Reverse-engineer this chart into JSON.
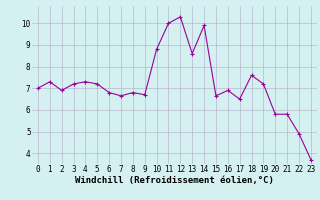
{
  "x": [
    0,
    1,
    2,
    3,
    4,
    5,
    6,
    7,
    8,
    9,
    10,
    11,
    12,
    13,
    14,
    15,
    16,
    17,
    18,
    19,
    20,
    21,
    22,
    23
  ],
  "y": [
    7.0,
    7.3,
    6.9,
    7.2,
    7.3,
    7.2,
    6.8,
    6.65,
    6.8,
    6.7,
    8.8,
    10.0,
    10.3,
    8.6,
    9.9,
    6.65,
    6.9,
    6.5,
    7.6,
    7.2,
    5.8,
    5.8,
    4.9,
    3.7
  ],
  "line_color": "#990099",
  "marker": "+",
  "markersize": 3,
  "linewidth": 0.8,
  "bg_color": "#d4f0f0",
  "grid_color": "#b8b8d0",
  "xlabel": "Windchill (Refroidissement éolien,°C)",
  "xlabel_fontsize": 6.5,
  "tick_fontsize": 5.5,
  "ylim": [
    3.5,
    10.8
  ],
  "xlim": [
    -0.5,
    23.5
  ],
  "yticks": [
    4,
    5,
    6,
    7,
    8,
    9,
    10
  ],
  "xticks": [
    0,
    1,
    2,
    3,
    4,
    5,
    6,
    7,
    8,
    9,
    10,
    11,
    12,
    13,
    14,
    15,
    16,
    17,
    18,
    19,
    20,
    21,
    22,
    23
  ]
}
